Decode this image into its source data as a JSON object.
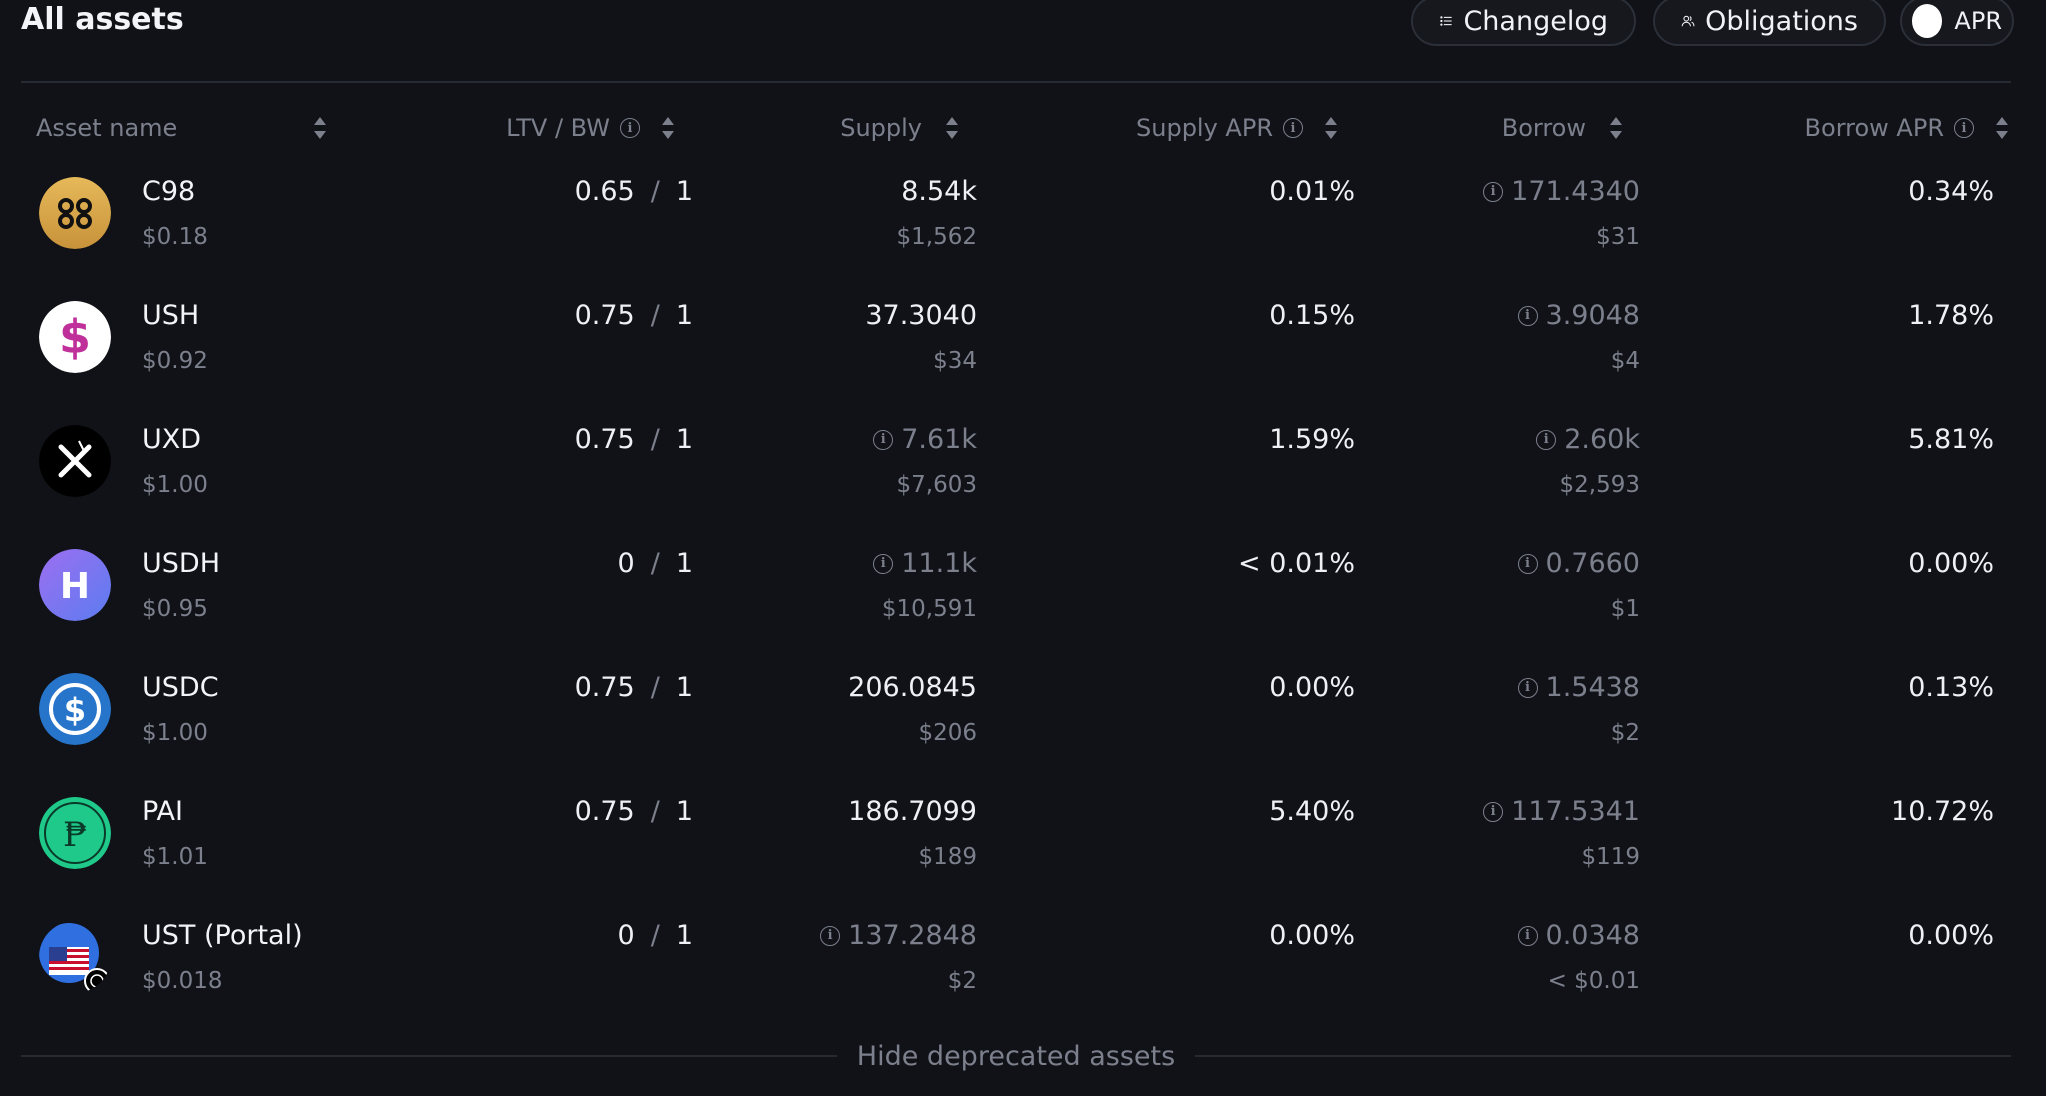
{
  "header": {
    "title": "All assets",
    "changelog_label": "Changelog",
    "obligations_label": "Obligations",
    "apr_toggle_label": "APR"
  },
  "columns": {
    "asset_name": "Asset name",
    "ltv_bw": "LTV / BW",
    "supply": "Supply",
    "supply_apr": "Supply APR",
    "borrow": "Borrow",
    "borrow_apr": "Borrow APR"
  },
  "assets": [
    {
      "name": "C98",
      "price": "$0.18",
      "ltv": "0.65",
      "bw": "1",
      "supply": "8.54k",
      "supply_usd": "$1,562",
      "supply_info": false,
      "supply_apr": "0.01%",
      "borrow": "171.4340",
      "borrow_usd": "$31",
      "borrow_apr": "0.34%",
      "icon": "c98-logo"
    },
    {
      "name": "USH",
      "price": "$0.92",
      "ltv": "0.75",
      "bw": "1",
      "supply": "37.3040",
      "supply_usd": "$34",
      "supply_info": false,
      "supply_apr": "0.15%",
      "borrow": "3.9048",
      "borrow_usd": "$4",
      "borrow_apr": "1.78%",
      "icon": "ush-logo"
    },
    {
      "name": "UXD",
      "price": "$1.00",
      "ltv": "0.75",
      "bw": "1",
      "supply": "7.61k",
      "supply_usd": "$7,603",
      "supply_info": true,
      "supply_apr": "1.59%",
      "borrow": "2.60k",
      "borrow_usd": "$2,593",
      "borrow_apr": "5.81%",
      "icon": "uxd-logo"
    },
    {
      "name": "USDH",
      "price": "$0.95",
      "ltv": "0",
      "bw": "1",
      "supply": "11.1k",
      "supply_usd": "$10,591",
      "supply_info": true,
      "supply_apr": "< 0.01%",
      "borrow": "0.7660",
      "borrow_usd": "$1",
      "borrow_apr": "0.00%",
      "icon": "usdh-logo"
    },
    {
      "name": "USDC",
      "price": "$1.00",
      "ltv": "0.75",
      "bw": "1",
      "supply": "206.0845",
      "supply_usd": "$206",
      "supply_info": false,
      "supply_apr": "0.00%",
      "borrow": "1.5438",
      "borrow_usd": "$2",
      "borrow_apr": "0.13%",
      "icon": "usdc-logo"
    },
    {
      "name": "PAI",
      "price": "$1.01",
      "ltv": "0.75",
      "bw": "1",
      "supply": "186.7099",
      "supply_usd": "$189",
      "supply_info": false,
      "supply_apr": "5.40%",
      "borrow": "117.5341",
      "borrow_usd": "$119",
      "borrow_apr": "10.72%",
      "icon": "pai-logo"
    },
    {
      "name": "UST (Portal)",
      "price": "$0.018",
      "ltv": "0",
      "bw": "1",
      "supply": "137.2848",
      "supply_usd": "$2",
      "supply_info": true,
      "supply_apr": "0.00%",
      "borrow": "0.0348",
      "borrow_usd": "< $0.01",
      "borrow_apr": "0.00%",
      "icon": "ust-logo"
    }
  ],
  "footer": {
    "hide_deprecated_label": "Hide deprecated assets"
  },
  "colors": {
    "background": "#101217",
    "text": "#eef0f4",
    "muted": "#7b808c",
    "divider": "#262a32"
  }
}
